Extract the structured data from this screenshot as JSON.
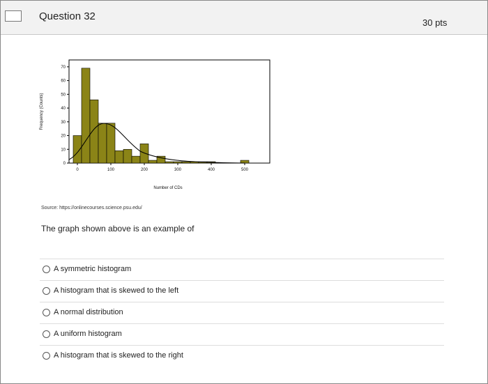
{
  "header": {
    "title": "Question 32",
    "points": "30 pts"
  },
  "chart_data": {
    "type": "histogram",
    "xlabel": "Number of CDs",
    "ylabel": "Frequency (Counts)",
    "bins": [
      -12.5,
      12.5,
      37.5,
      62.5,
      87.5,
      112.5,
      137.5,
      162.5,
      187.5,
      212.5,
      237.5,
      262.5,
      287.5,
      312.5,
      337.5,
      362.5,
      387.5,
      412.5,
      437.5,
      462.5,
      487.5,
      512.5,
      537.5,
      562.5
    ],
    "values": [
      20,
      69,
      46,
      29,
      29,
      9,
      10,
      5,
      14,
      2,
      5,
      1,
      1,
      1,
      1,
      1,
      1,
      0,
      0,
      0,
      2,
      0,
      0
    ],
    "color": "#8b8417",
    "xlim": [
      -25,
      575
    ],
    "ylim": [
      0,
      75
    ],
    "xticks": [
      0,
      100,
      200,
      300,
      400,
      500
    ],
    "yticks": [
      0,
      10,
      20,
      30,
      40,
      50,
      60,
      70
    ]
  },
  "source": "Source: https://onlinecourses.science.psu.edu/",
  "question": "The graph shown above is an example of",
  "options": [
    "A symmetric histogram",
    "A histogram that is skewed to the left",
    "A normal distribution",
    "A uniform histogram",
    "A histogram that is skewed to the right"
  ]
}
